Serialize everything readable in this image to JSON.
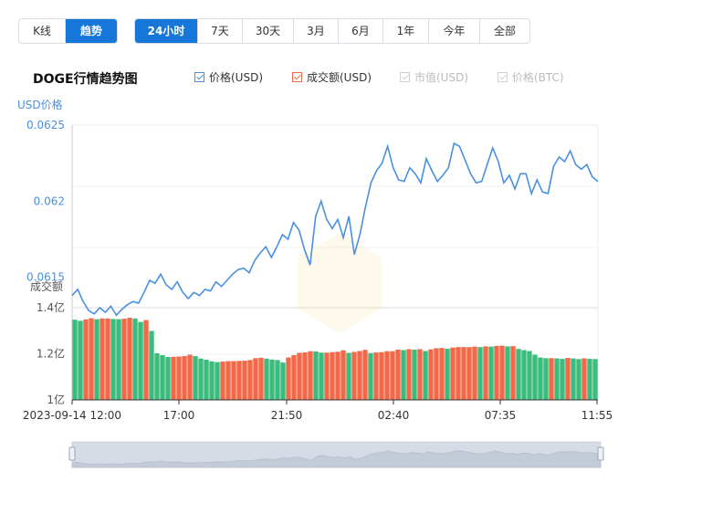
{
  "tabs_type": [
    {
      "label": "K线",
      "active": false
    },
    {
      "label": "趋势",
      "active": true
    }
  ],
  "tabs_range": [
    {
      "label": "24小时",
      "active": true
    },
    {
      "label": "7天",
      "active": false
    },
    {
      "label": "30天",
      "active": false
    },
    {
      "label": "3月",
      "active": false
    },
    {
      "label": "6月",
      "active": false
    },
    {
      "label": "1年",
      "active": false
    },
    {
      "label": "今年",
      "active": false
    },
    {
      "label": "全部",
      "active": false
    }
  ],
  "title": "DOGE行情趋势图",
  "legend": [
    {
      "label": "价格(USD)",
      "checked": true,
      "color": "#4a90e2"
    },
    {
      "label": "成交额(USD)",
      "checked": true,
      "color": "#f06a4a"
    },
    {
      "label": "市值(USD)",
      "checked": false,
      "color": "#cccccc"
    },
    {
      "label": "价格(BTC)",
      "checked": false,
      "color": "#cccccc"
    }
  ],
  "chart_data": {
    "type": "line",
    "price_axis_label": "USD价格",
    "price_ticks": [
      "0.0625",
      "0.062",
      "0.0615"
    ],
    "price_ylim": [
      0.0613,
      0.0625
    ],
    "volume_axis_label": "成交额",
    "volume_ticks": [
      "1.4亿",
      "1.2亿",
      "1亿"
    ],
    "volume_ylim": [
      100000000,
      140000000
    ],
    "x_ticks": [
      "2023-09-14 12:00",
      "17:00",
      "21:50",
      "02:40",
      "07:35",
      "11:55"
    ],
    "price_series": {
      "name": "价格(USD)",
      "color": "#4a90e2",
      "values": [
        0.06138,
        0.06142,
        0.06134,
        0.06128,
        0.06126,
        0.0613,
        0.06127,
        0.06131,
        0.06125,
        0.06129,
        0.06132,
        0.06134,
        0.06133,
        0.0614,
        0.06148,
        0.06146,
        0.06152,
        0.06145,
        0.06142,
        0.06147,
        0.0614,
        0.06136,
        0.0614,
        0.06138,
        0.06142,
        0.06141,
        0.06147,
        0.06144,
        0.06148,
        0.06152,
        0.06155,
        0.06156,
        0.06153,
        0.06161,
        0.06166,
        0.0617,
        0.06163,
        0.0617,
        0.06178,
        0.06175,
        0.06186,
        0.06181,
        0.06168,
        0.06158,
        0.0619,
        0.062,
        0.06188,
        0.06182,
        0.06188,
        0.06176,
        0.0619,
        0.06165,
        0.06178,
        0.06196,
        0.06212,
        0.0622,
        0.06225,
        0.06236,
        0.06222,
        0.06214,
        0.06213,
        0.06222,
        0.06218,
        0.06212,
        0.06228,
        0.0622,
        0.06213,
        0.06217,
        0.06222,
        0.06238,
        0.06236,
        0.06227,
        0.06218,
        0.06212,
        0.06213,
        0.06224,
        0.06235,
        0.06226,
        0.06212,
        0.06217,
        0.06208,
        0.06218,
        0.06218,
        0.06205,
        0.06214,
        0.06206,
        0.06205,
        0.06223,
        0.06229,
        0.06226,
        0.06233,
        0.06224,
        0.06221,
        0.06224,
        0.06216,
        0.06213
      ]
    },
    "volume_series": {
      "name": "成交额(USD)",
      "up_color": "#f06a4a",
      "down_color": "#3dbd7d",
      "values": [
        134800000,
        134300000,
        134900000,
        135400000,
        135000000,
        135300000,
        135300000,
        135100000,
        135000000,
        135200000,
        135600000,
        135300000,
        133800000,
        134600000,
        129900000,
        120200000,
        119400000,
        118600000,
        118700000,
        118800000,
        119000000,
        119600000,
        119000000,
        117900000,
        117400000,
        116700000,
        116400000,
        116600000,
        116800000,
        116800000,
        116900000,
        117000000,
        117300000,
        118100000,
        118300000,
        117900000,
        117500000,
        117300000,
        116200000,
        118400000,
        119400000,
        120400000,
        120600000,
        121100000,
        121000000,
        120500000,
        120500000,
        120700000,
        120900000,
        121500000,
        120400000,
        120800000,
        121200000,
        121700000,
        120300000,
        120600000,
        120700000,
        121100000,
        121100000,
        121800000,
        121600000,
        122000000,
        121800000,
        122000000,
        121200000,
        121900000,
        122400000,
        122500000,
        122200000,
        122700000,
        122900000,
        122900000,
        122900000,
        123100000,
        122900000,
        123200000,
        123100000,
        123400000,
        123500000,
        123200000,
        123300000,
        122100000,
        121600000,
        121200000,
        119600000,
        118400000,
        118100000,
        118100000,
        118000000,
        117800000,
        118200000,
        118000000,
        117700000,
        118000000,
        117800000,
        117700000
      ]
    }
  }
}
